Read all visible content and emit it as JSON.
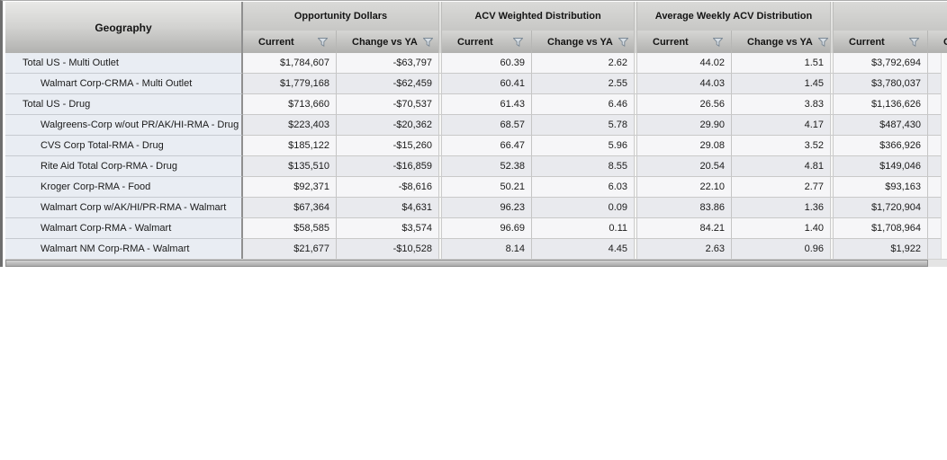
{
  "grid": {
    "geography_header": "Geography",
    "column_groups": [
      {
        "label": "Opportunity Dollars",
        "columns": [
          "Current",
          "Change vs YA"
        ]
      },
      {
        "label": "ACV Weighted Distribution",
        "columns": [
          "Current",
          "Change vs YA"
        ]
      },
      {
        "label": "Average Weekly ACV Distribution",
        "columns": [
          "Current",
          "Change vs YA"
        ]
      },
      {
        "label": "",
        "columns": [
          "Current",
          "Change vs YA"
        ]
      }
    ],
    "rows": [
      {
        "geography": "Total US - Multi Outlet",
        "level": 0,
        "values": [
          "$1,784,607",
          "-$63,797",
          "60.39",
          "2.62",
          "44.02",
          "1.51",
          "$3,792,694",
          ""
        ]
      },
      {
        "geography": "Walmart Corp-CRMA - Multi Outlet",
        "level": 1,
        "values": [
          "$1,779,168",
          "-$62,459",
          "60.41",
          "2.55",
          "44.03",
          "1.45",
          "$3,780,037",
          ""
        ]
      },
      {
        "geography": "Total US - Drug",
        "level": 0,
        "values": [
          "$713,660",
          "-$70,537",
          "61.43",
          "6.46",
          "26.56",
          "3.83",
          "$1,136,626",
          ""
        ]
      },
      {
        "geography": "Walgreens-Corp w/out PR/AK/HI-RMA - Drug",
        "level": 1,
        "values": [
          "$223,403",
          "-$20,362",
          "68.57",
          "5.78",
          "29.90",
          "4.17",
          "$487,430",
          ""
        ]
      },
      {
        "geography": "CVS Corp Total-RMA - Drug",
        "level": 1,
        "values": [
          "$185,122",
          "-$15,260",
          "66.47",
          "5.96",
          "29.08",
          "3.52",
          "$366,926",
          ""
        ]
      },
      {
        "geography": "Rite Aid Total Corp-RMA - Drug",
        "level": 1,
        "values": [
          "$135,510",
          "-$16,859",
          "52.38",
          "8.55",
          "20.54",
          "4.81",
          "$149,046",
          ""
        ]
      },
      {
        "geography": "Kroger Corp-RMA - Food",
        "level": 1,
        "values": [
          "$92,371",
          "-$8,616",
          "50.21",
          "6.03",
          "22.10",
          "2.77",
          "$93,163",
          ""
        ]
      },
      {
        "geography": "Walmart Corp w/AK/HI/PR-RMA - Walmart",
        "level": 1,
        "values": [
          "$67,364",
          "$4,631",
          "96.23",
          "0.09",
          "83.86",
          "1.36",
          "$1,720,904",
          ""
        ]
      },
      {
        "geography": "Walmart Corp-RMA - Walmart",
        "level": 1,
        "values": [
          "$58,585",
          "$3,574",
          "96.69",
          "0.11",
          "84.21",
          "1.40",
          "$1,708,964",
          ""
        ]
      },
      {
        "geography": "Walmart NM Corp-RMA - Walmart",
        "level": 1,
        "values": [
          "$21,677",
          "-$10,528",
          "8.14",
          "4.45",
          "2.63",
          "0.96",
          "$1,922",
          ""
        ]
      }
    ],
    "icons": {
      "column_filter": "filter-funnel-icon"
    },
    "colors": {
      "header_gradient_top": "#dadad8",
      "header_gradient_bottom": "#b1b1af",
      "geography_cell_bg": "#e9edf3",
      "row_odd_bg": "#f6f6f8",
      "row_even_bg": "#e9eaee",
      "grid_border_dark": "#6e6e6e",
      "group_divider": "#8f8f8f",
      "scrollbar_thumb": "#a8a8a8"
    }
  }
}
